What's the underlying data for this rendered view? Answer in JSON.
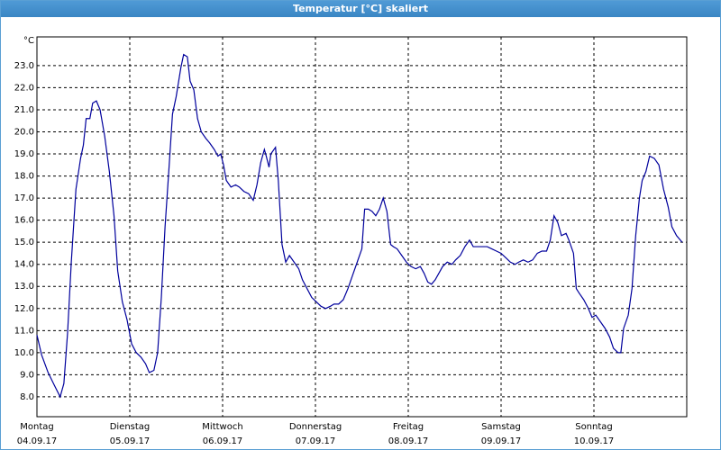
{
  "chart_data": {
    "type": "line",
    "title": "Temperatur [°C] skaliert",
    "y_unit": "°C",
    "color": "#00009c",
    "grid": true,
    "xlim": [
      0,
      7
    ],
    "xticks": [
      0,
      1,
      2,
      3,
      4,
      5,
      6
    ],
    "day_labels": [
      "Montag",
      "Dienstag",
      "Mittwoch",
      "Donnerstag",
      "Freitag",
      "Samstag",
      "Sonntag"
    ],
    "date_labels": [
      "04.09.17",
      "05.09.17",
      "06.09.17",
      "07.09.17",
      "08.09.17",
      "09.09.17",
      "10.09.17"
    ],
    "ylim": [
      7.1,
      24.3
    ],
    "yticks": [
      {
        "value": 8,
        "label": "8.0"
      },
      {
        "value": 9,
        "label": "9.0"
      },
      {
        "value": 10,
        "label": "10.0"
      },
      {
        "value": 11,
        "label": "11.0"
      },
      {
        "value": 12,
        "label": "12.0"
      },
      {
        "value": 13,
        "label": "13.0"
      },
      {
        "value": 14,
        "label": "14.0"
      },
      {
        "value": 15,
        "label": "15.0"
      },
      {
        "value": 16,
        "label": "16.0"
      },
      {
        "value": 17,
        "label": "17.0"
      },
      {
        "value": 18,
        "label": "18.0"
      },
      {
        "value": 19,
        "label": "19.0"
      },
      {
        "value": 20,
        "label": "20.0"
      },
      {
        "value": 21,
        "label": "21.0"
      },
      {
        "value": 22,
        "label": "22.0"
      },
      {
        "value": 23,
        "label": "23.0"
      }
    ],
    "x": [
      0,
      0.05,
      0.12,
      0.19,
      0.25,
      0.29,
      0.33,
      0.37,
      0.42,
      0.47,
      0.5,
      0.53,
      0.57,
      0.6,
      0.64,
      0.68,
      0.73,
      0.78,
      0.83,
      0.87,
      0.92,
      0.97,
      1.02,
      1.07,
      1.12,
      1.17,
      1.21,
      1.26,
      1.3,
      1.34,
      1.38,
      1.42,
      1.46,
      1.5,
      1.55,
      1.58,
      1.62,
      1.65,
      1.69,
      1.73,
      1.77,
      1.82,
      1.86,
      1.91,
      1.95,
      1.98,
      2.01,
      2.04,
      2.09,
      2.14,
      2.18,
      2.23,
      2.28,
      2.33,
      2.37,
      2.41,
      2.45,
      2.47,
      2.5,
      2.52,
      2.57,
      2.6,
      2.64,
      2.68,
      2.72,
      2.77,
      2.82,
      2.86,
      2.91,
      2.96,
      3.01,
      3.06,
      3.11,
      3.16,
      3.2,
      3.25,
      3.3,
      3.35,
      3.4,
      3.45,
      3.5,
      3.53,
      3.57,
      3.61,
      3.65,
      3.69,
      3.73,
      3.77,
      3.81,
      3.84,
      3.88,
      3.93,
      3.98,
      4.03,
      4.08,
      4.13,
      4.17,
      4.21,
      4.25,
      4.29,
      4.33,
      4.37,
      4.42,
      4.47,
      4.51,
      4.56,
      4.61,
      4.66,
      4.7,
      4.76,
      4.81,
      4.85,
      4.9,
      4.95,
      5.0,
      5.05,
      5.1,
      5.15,
      5.19,
      5.24,
      5.29,
      5.34,
      5.39,
      5.44,
      5.49,
      5.53,
      5.57,
      5.61,
      5.65,
      5.7,
      5.73,
      5.78,
      5.81,
      5.84,
      5.89,
      5.94,
      5.98,
      6.02,
      6.07,
      6.12,
      6.17,
      6.21,
      6.26,
      6.29,
      6.32,
      6.37,
      6.41,
      6.45,
      6.49,
      6.52,
      6.56,
      6.6,
      6.65,
      6.7,
      6.75,
      6.8,
      6.84,
      6.89,
      6.95
    ],
    "values": [
      10.8,
      9.9,
      9.1,
      8.5,
      8.0,
      8.6,
      10.9,
      14.1,
      17.4,
      18.8,
      19.4,
      20.6,
      20.6,
      21.3,
      21.4,
      21.0,
      19.8,
      18.2,
      16.2,
      13.7,
      12.3,
      11.5,
      10.4,
      10.0,
      9.8,
      9.5,
      9.1,
      9.2,
      10.0,
      12.5,
      15.7,
      18.2,
      20.8,
      21.6,
      22.9,
      23.5,
      23.4,
      22.3,
      21.9,
      20.6,
      20.0,
      19.7,
      19.5,
      19.2,
      18.9,
      19.0,
      18.5,
      17.8,
      17.5,
      17.6,
      17.5,
      17.3,
      17.2,
      16.9,
      17.6,
      18.6,
      19.2,
      18.9,
      18.4,
      19.0,
      19.3,
      17.8,
      14.9,
      14.1,
      14.4,
      14.1,
      13.8,
      13.3,
      12.9,
      12.5,
      12.3,
      12.1,
      12.0,
      12.1,
      12.2,
      12.2,
      12.4,
      12.9,
      13.5,
      14.1,
      14.7,
      16.5,
      16.5,
      16.4,
      16.2,
      16.5,
      17.0,
      16.4,
      14.9,
      14.8,
      14.7,
      14.4,
      14.1,
      13.9,
      13.8,
      13.9,
      13.6,
      13.2,
      13.1,
      13.3,
      13.6,
      13.9,
      14.1,
      14.0,
      14.2,
      14.4,
      14.8,
      15.1,
      14.8,
      14.8,
      14.8,
      14.8,
      14.7,
      14.6,
      14.5,
      14.3,
      14.1,
      14.0,
      14.1,
      14.2,
      14.1,
      14.2,
      14.5,
      14.6,
      14.6,
      15.1,
      16.2,
      15.9,
      15.3,
      15.4,
      15.1,
      14.5,
      12.9,
      12.7,
      12.4,
      12.0,
      11.6,
      11.7,
      11.4,
      11.1,
      10.7,
      10.2,
      10.0,
      10.0,
      11.1,
      11.7,
      12.9,
      15.3,
      17.0,
      17.8,
      18.2,
      18.9,
      18.8,
      18.5,
      17.4,
      16.6,
      15.7,
      15.3,
      15.0
    ]
  }
}
